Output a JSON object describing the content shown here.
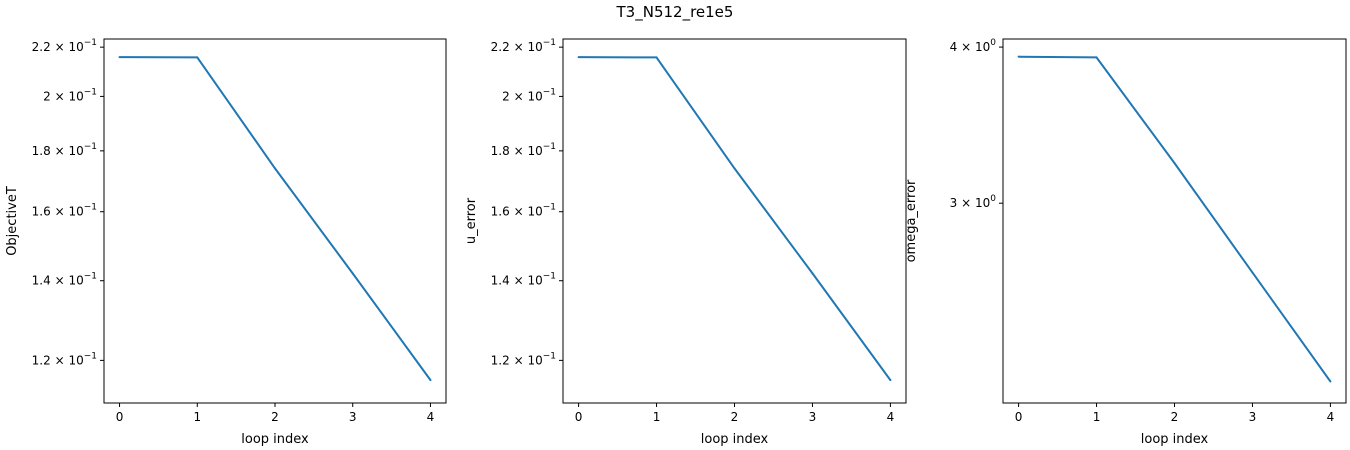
{
  "figure": {
    "title": "T3_N512_re1e5"
  },
  "chart_data": [
    {
      "type": "line",
      "title": "",
      "xlabel": "loop index",
      "ylabel": "ObjectiveT",
      "yscale": "log",
      "grid": false,
      "color": "#1f77b4",
      "x": [
        0,
        1,
        2,
        3,
        4
      ],
      "series": [
        {
          "values": [
            0.2158,
            0.2157,
            0.174,
            0.142,
            0.1155
          ]
        }
      ],
      "xlim": [
        -0.2,
        4.2
      ],
      "ylim": [
        0.1105,
        0.2235
      ],
      "xticks": [
        0,
        1,
        2,
        3,
        4
      ],
      "yticks": [
        {
          "value": 0.2,
          "mantissa": "2",
          "exp": "−1"
        },
        {
          "value": 0.18,
          "mantissa": "1.8",
          "exp": "−1"
        },
        {
          "value": 0.16,
          "mantissa": "1.6",
          "exp": "−1"
        },
        {
          "value": 0.14,
          "mantissa": "1.4",
          "exp": "−1"
        },
        {
          "value": 0.12,
          "mantissa": "1.2",
          "exp": "−1"
        }
      ],
      "top_tick": {
        "value": 0.22,
        "mantissa": "2.2",
        "exp": "−1"
      }
    },
    {
      "type": "line",
      "title": "",
      "xlabel": "loop index",
      "ylabel": "u_error",
      "yscale": "log",
      "grid": false,
      "color": "#1f77b4",
      "x": [
        0,
        1,
        2,
        3,
        4
      ],
      "series": [
        {
          "values": [
            0.2158,
            0.2157,
            0.174,
            0.142,
            0.1155
          ]
        }
      ],
      "xlim": [
        -0.2,
        4.2
      ],
      "ylim": [
        0.1105,
        0.2235
      ],
      "xticks": [
        0,
        1,
        2,
        3,
        4
      ],
      "yticks": [
        {
          "value": 0.2,
          "mantissa": "2",
          "exp": "−1"
        },
        {
          "value": 0.18,
          "mantissa": "1.8",
          "exp": "−1"
        },
        {
          "value": 0.16,
          "mantissa": "1.6",
          "exp": "−1"
        },
        {
          "value": 0.14,
          "mantissa": "1.4",
          "exp": "−1"
        },
        {
          "value": 0.12,
          "mantissa": "1.2",
          "exp": "−1"
        }
      ],
      "top_tick": {
        "value": 0.22,
        "mantissa": "2.2",
        "exp": "−1"
      }
    },
    {
      "type": "line",
      "title": "",
      "xlabel": "loop index",
      "ylabel": "omega_error",
      "yscale": "log",
      "grid": false,
      "color": "#1f77b4",
      "x": [
        0,
        1,
        2,
        3,
        4
      ],
      "series": [
        {
          "values": [
            3.93,
            3.925,
            3.23,
            2.64,
            2.16
          ]
        }
      ],
      "xlim": [
        -0.2,
        4.2
      ],
      "ylim": [
        2.076,
        4.06
      ],
      "xticks": [
        0,
        1,
        2,
        3,
        4
      ],
      "yticks": [
        {
          "value": 3,
          "mantissa": "3",
          "exp": "0"
        }
      ],
      "top_tick": {
        "value": 4,
        "mantissa": "4",
        "exp": "0"
      }
    }
  ]
}
